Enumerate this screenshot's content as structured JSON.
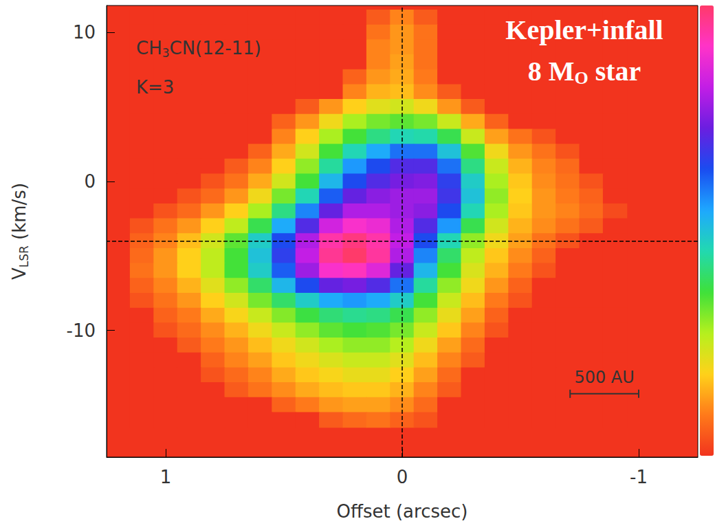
{
  "chart_data": {
    "type": "heatmap",
    "xlabel": {
      "text": "Offset (arcsec)"
    },
    "ylabel": {
      "text": "VLSR (km/s)",
      "subscript": "LSR"
    },
    "annotations": [
      {
        "text": "CH3CN(12-11)",
        "subscript": "3"
      },
      {
        "text": "K=3"
      },
      {
        "text": "Kepler+infall"
      },
      {
        "text": "8 MO star",
        "subscript": "O"
      }
    ],
    "xlim": [
      1.25,
      -1.25
    ],
    "xticks": [
      1,
      0,
      -1
    ],
    "ylim": [
      -18.5,
      11.8
    ],
    "yticks": [
      -10,
      0,
      10
    ],
    "grid": false,
    "reference_lines": {
      "x": 0,
      "y": -4
    },
    "scale_bar": {
      "label": "500 AU",
      "x": [
        -0.71,
        -1.0
      ],
      "y": -14.25
    },
    "color_range": [
      0,
      100
    ],
    "x": [
      1.1,
      1.0,
      0.9,
      0.8,
      0.7,
      0.6,
      0.5,
      0.4,
      0.3,
      0.2,
      0.1,
      0.0,
      -0.1,
      -0.2,
      -0.3,
      -0.4,
      -0.5,
      -0.6,
      -0.7,
      -0.8,
      -0.9
    ],
    "y": [
      11,
      10,
      9,
      8,
      7,
      6,
      5,
      4,
      3,
      2,
      1,
      0,
      -1,
      -2,
      -3,
      -4,
      -5,
      -6,
      -7,
      -8,
      -9,
      -10,
      -11,
      -12,
      -13,
      -14,
      -15,
      -16
    ],
    "values": [
      [
        0,
        0,
        0,
        0,
        0,
        0,
        0,
        0,
        0,
        0,
        5,
        10,
        5,
        0,
        0,
        0,
        0,
        0,
        0,
        0,
        0
      ],
      [
        0,
        0,
        0,
        0,
        0,
        0,
        0,
        0,
        0,
        0,
        8,
        12,
        8,
        0,
        0,
        0,
        0,
        0,
        0,
        0,
        0
      ],
      [
        0,
        0,
        0,
        0,
        0,
        0,
        0,
        0,
        0,
        0,
        10,
        12,
        8,
        0,
        0,
        0,
        0,
        0,
        0,
        0,
        0
      ],
      [
        0,
        0,
        0,
        0,
        0,
        0,
        0,
        0,
        0,
        0,
        10,
        13,
        8,
        0,
        0,
        0,
        0,
        0,
        0,
        0,
        0
      ],
      [
        0,
        0,
        0,
        0,
        0,
        0,
        0,
        0,
        0,
        6,
        12,
        14,
        9,
        0,
        0,
        0,
        0,
        0,
        0,
        0,
        0
      ],
      [
        0,
        0,
        0,
        0,
        0,
        0,
        0,
        0,
        0,
        10,
        15,
        16,
        11,
        5,
        0,
        0,
        0,
        0,
        0,
        0,
        0
      ],
      [
        0,
        0,
        0,
        0,
        0,
        0,
        0,
        5,
        12,
        18,
        22,
        24,
        20,
        12,
        5,
        0,
        0,
        0,
        0,
        0,
        0
      ],
      [
        0,
        0,
        0,
        0,
        0,
        0,
        6,
        12,
        20,
        28,
        32,
        34,
        32,
        25,
        14,
        6,
        0,
        0,
        0,
        0,
        0
      ],
      [
        0,
        0,
        0,
        0,
        0,
        0,
        10,
        18,
        28,
        36,
        42,
        46,
        45,
        38,
        25,
        13,
        8,
        4,
        0,
        0,
        0
      ],
      [
        0,
        0,
        0,
        0,
        0,
        6,
        14,
        24,
        36,
        46,
        54,
        60,
        60,
        50,
        35,
        20,
        12,
        8,
        4,
        0,
        0
      ],
      [
        0,
        0,
        0,
        0,
        5,
        10,
        18,
        30,
        44,
        56,
        64,
        70,
        70,
        60,
        42,
        25,
        15,
        10,
        7,
        0,
        0
      ],
      [
        0,
        0,
        0,
        4,
        8,
        14,
        24,
        36,
        52,
        64,
        70,
        74,
        75,
        66,
        48,
        28,
        17,
        11,
        8,
        4,
        0
      ],
      [
        0,
        0,
        4,
        7,
        12,
        20,
        32,
        46,
        62,
        72,
        76,
        78,
        78,
        68,
        50,
        30,
        18,
        12,
        9,
        6,
        0
      ],
      [
        0,
        4,
        7,
        12,
        18,
        28,
        42,
        58,
        72,
        80,
        80,
        78,
        76,
        64,
        46,
        28,
        17,
        12,
        10,
        7,
        3
      ],
      [
        4,
        8,
        12,
        18,
        26,
        38,
        54,
        70,
        84,
        90,
        88,
        80,
        70,
        56,
        38,
        24,
        15,
        11,
        8,
        5,
        0
      ],
      [
        6,
        10,
        16,
        24,
        34,
        48,
        64,
        80,
        94,
        98,
        94,
        82,
        64,
        46,
        30,
        20,
        13,
        8,
        4,
        0,
        0
      ],
      [
        7,
        12,
        18,
        26,
        36,
        50,
        66,
        82,
        96,
        100,
        95,
        80,
        58,
        40,
        26,
        17,
        11,
        6,
        0,
        0,
        0
      ],
      [
        8,
        12,
        18,
        26,
        36,
        48,
        62,
        78,
        90,
        92,
        86,
        72,
        52,
        36,
        23,
        15,
        9,
        4,
        0,
        0,
        0
      ],
      [
        6,
        10,
        15,
        22,
        30,
        40,
        52,
        64,
        72,
        74,
        70,
        60,
        44,
        30,
        20,
        12,
        6,
        0,
        0,
        0,
        0
      ],
      [
        4,
        8,
        12,
        18,
        24,
        32,
        40,
        48,
        54,
        56,
        54,
        48,
        36,
        25,
        16,
        9,
        4,
        0,
        0,
        0,
        0
      ],
      [
        0,
        6,
        9,
        14,
        19,
        25,
        31,
        37,
        41,
        43,
        42,
        38,
        30,
        21,
        13,
        6,
        0,
        0,
        0,
        0,
        0
      ],
      [
        0,
        4,
        7,
        11,
        15,
        20,
        25,
        30,
        34,
        36,
        35,
        32,
        25,
        17,
        10,
        4,
        0,
        0,
        0,
        0,
        0
      ],
      [
        0,
        0,
        5,
        9,
        12,
        16,
        20,
        24,
        28,
        30,
        30,
        27,
        20,
        13,
        7,
        0,
        0,
        0,
        0,
        0,
        0
      ],
      [
        0,
        0,
        0,
        6,
        10,
        13,
        17,
        20,
        23,
        25,
        25,
        22,
        16,
        10,
        5,
        0,
        0,
        0,
        0,
        0,
        0
      ],
      [
        0,
        0,
        0,
        4,
        7,
        10,
        14,
        17,
        19,
        21,
        21,
        18,
        13,
        7,
        0,
        0,
        0,
        0,
        0,
        0,
        0
      ],
      [
        0,
        0,
        0,
        0,
        5,
        8,
        11,
        14,
        16,
        17,
        17,
        15,
        10,
        5,
        0,
        0,
        0,
        0,
        0,
        0,
        0
      ],
      [
        0,
        0,
        0,
        0,
        0,
        0,
        6,
        9,
        12,
        13,
        13,
        11,
        7,
        0,
        0,
        0,
        0,
        0,
        0,
        0,
        0
      ],
      [
        0,
        0,
        0,
        0,
        0,
        0,
        0,
        0,
        5,
        7,
        8,
        6,
        4,
        0,
        0,
        0,
        0,
        0,
        0,
        0,
        0
      ]
    ]
  }
}
